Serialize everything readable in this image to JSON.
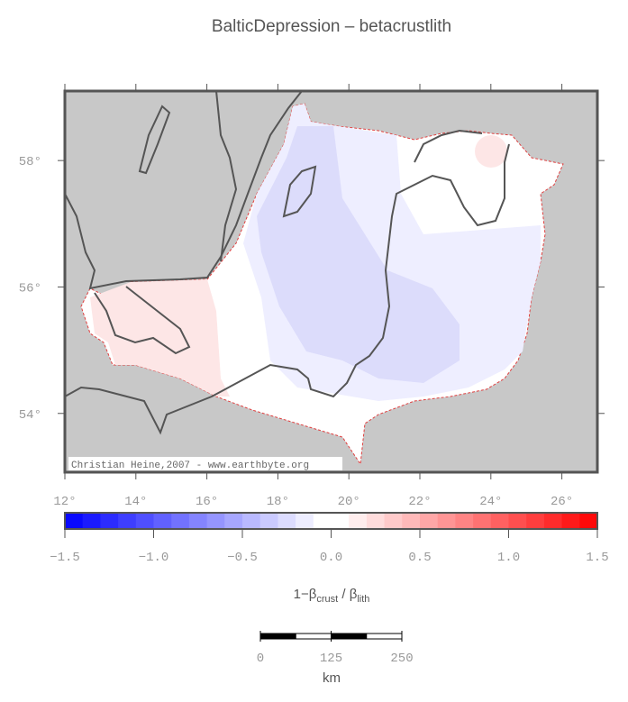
{
  "title": "BalticDepression – betacrustlith",
  "map": {
    "xlim": [
      12,
      27
    ],
    "ylim": [
      53.07,
      59.1
    ],
    "xticks": [
      {
        "value": 12,
        "label": "12°"
      },
      {
        "value": 14,
        "label": "14°"
      },
      {
        "value": 16,
        "label": "16°"
      },
      {
        "value": 18,
        "label": "18°"
      },
      {
        "value": 20,
        "label": "20°"
      },
      {
        "value": 22,
        "label": "22°"
      },
      {
        "value": 24,
        "label": "24°"
      },
      {
        "value": 26,
        "label": "26°"
      }
    ],
    "yticks": [
      {
        "value": 54,
        "label": "54°"
      },
      {
        "value": 56,
        "label": "56°"
      },
      {
        "value": 58,
        "label": "58°"
      }
    ],
    "credit": "Christian Heine,2007 - www.earthbyte.org"
  },
  "colorbar": {
    "lim": [
      -1.5,
      1.5
    ],
    "step": 0.1,
    "colors": [
      "#0000ff",
      "#ffffff",
      "#ff0000"
    ],
    "ticks": [
      {
        "value": -1.5,
        "label": "−1.5"
      },
      {
        "value": -1,
        "label": "−1.0"
      },
      {
        "value": -0.5,
        "label": "−0.5"
      },
      {
        "value": 0,
        "label": "0.0"
      },
      0.5,
      {
        "value": 1,
        "label": "1.0"
      },
      1.5
    ],
    "label": {
      "lead": "1−β",
      "sub1": "crust",
      "mid": " / β",
      "sub2": "lith"
    }
  },
  "scalebar": {
    "ticks": [
      0,
      125,
      250
    ],
    "unit": "km"
  }
}
